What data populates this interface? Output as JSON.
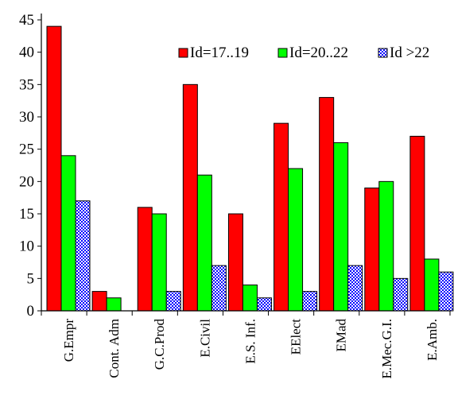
{
  "chart_data": {
    "type": "bar",
    "title": "",
    "xlabel": "",
    "ylabel": "",
    "ylim": [
      0,
      45
    ],
    "yticks": [
      0,
      5,
      10,
      15,
      20,
      25,
      30,
      35,
      40,
      45
    ],
    "grid": false,
    "legend_position": "top-right",
    "categories": [
      "G.Empr",
      "Cont. Adm",
      "G.C.Prod",
      "E.Civil",
      "E.S. Inf.",
      "EElect",
      "EMad",
      "E.Mec.G.I.",
      "E.Amb."
    ],
    "series": [
      {
        "name": "Id=17..19",
        "color": "#ff0000",
        "pattern": "solid",
        "values": [
          44,
          3,
          16,
          35,
          15,
          29,
          33,
          19,
          27
        ]
      },
      {
        "name": "Id=20..22",
        "color": "#00ff00",
        "pattern": "solid",
        "values": [
          24,
          2,
          15,
          21,
          4,
          22,
          26,
          20,
          8
        ]
      },
      {
        "name": "Id >22",
        "color": "#0000ff",
        "pattern": "checkered",
        "values": [
          17,
          0,
          3,
          7,
          2,
          3,
          7,
          5,
          6
        ]
      }
    ]
  }
}
